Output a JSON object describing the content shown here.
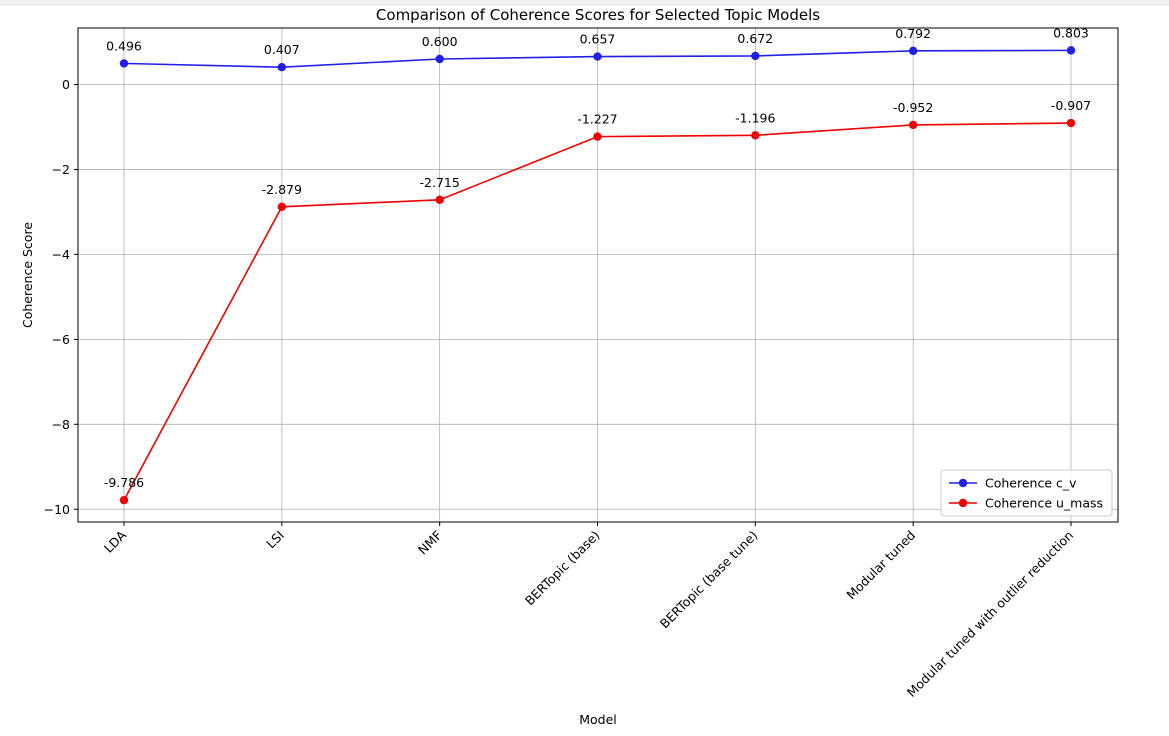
{
  "chart_data": {
    "type": "line",
    "title": "Comparison of Coherence Scores for Selected Topic Models",
    "xlabel": "Model",
    "ylabel": "Coherence Score",
    "categories": [
      "LDA",
      "LSI",
      "NMF",
      "BERTopic (base)",
      "BERTopic (base tune)",
      "Modular tuned",
      "Modular tuned with outlier reduction"
    ],
    "series": [
      {
        "name": "Coherence c_v",
        "color": "#1f1fe8",
        "values": [
          0.496,
          0.407,
          0.6,
          0.657,
          0.672,
          0.792,
          0.803
        ],
        "labels": [
          "0.496",
          "0.407",
          "0.600",
          "0.657",
          "0.672",
          "0.792",
          "0.803"
        ]
      },
      {
        "name": "Coherence u_mass",
        "color": "#ee0000",
        "values": [
          -9.786,
          -2.879,
          -2.715,
          -1.227,
          -1.196,
          -0.952,
          -0.907
        ],
        "labels": [
          "-9.786",
          "-2.879",
          "-2.715",
          "-1.227",
          "-1.196",
          "-0.952",
          "-0.907"
        ]
      }
    ],
    "yticks": [
      0,
      -2,
      -4,
      -6,
      -8,
      -10
    ],
    "ytick_labels": [
      "0",
      "−2",
      "−4",
      "−6",
      "−8",
      "−10"
    ],
    "ylim": [
      -10.3,
      1.33
    ],
    "grid": true,
    "legend": "lower-right"
  }
}
